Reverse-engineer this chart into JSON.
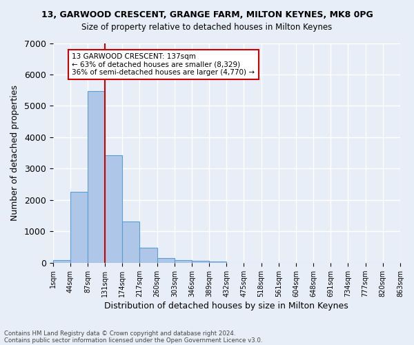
{
  "title1": "13, GARWOOD CRESCENT, GRANGE FARM, MILTON KEYNES, MK8 0PG",
  "title2": "Size of property relative to detached houses in Milton Keynes",
  "xlabel": "Distribution of detached houses by size in Milton Keynes",
  "ylabel": "Number of detached properties",
  "footer1": "Contains HM Land Registry data © Crown copyright and database right 2024.",
  "footer2": "Contains public sector information licensed under the Open Government Licence v3.0.",
  "bar_values": [
    75,
    2270,
    5470,
    3430,
    1310,
    470,
    155,
    90,
    55,
    30,
    0,
    0,
    0,
    0,
    0,
    0,
    0,
    0,
    0,
    0
  ],
  "bin_labels": [
    "1sqm",
    "44sqm",
    "87sqm",
    "131sqm",
    "174sqm",
    "217sqm",
    "260sqm",
    "303sqm",
    "346sqm",
    "389sqm",
    "432sqm",
    "475sqm",
    "518sqm",
    "561sqm",
    "604sqm",
    "648sqm",
    "691sqm",
    "734sqm",
    "777sqm",
    "820sqm",
    "863sqm"
  ],
  "bar_color": "#aec6e8",
  "bar_edge_color": "#5a9fd4",
  "background_color": "#e8eef8",
  "grid_color": "#ffffff",
  "vline_color": "#cc0000",
  "annotation_text": "13 GARWOOD CRESCENT: 137sqm\n← 63% of detached houses are smaller (8,329)\n36% of semi-detached houses are larger (4,770) →",
  "annotation_box_color": "#cc0000",
  "ylim": [
    0,
    7000
  ],
  "yticks": [
    0,
    1000,
    2000,
    3000,
    4000,
    5000,
    6000,
    7000
  ]
}
